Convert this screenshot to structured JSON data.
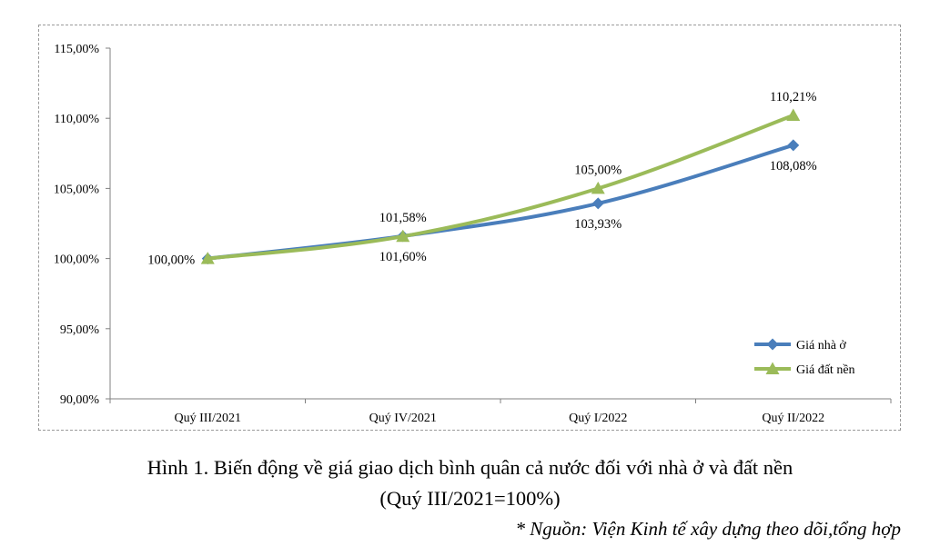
{
  "chart_data": {
    "type": "line",
    "categories": [
      "Quý III/2021",
      "Quý IV/2021",
      "Quý I/2022",
      "Quý II/2022"
    ],
    "ylim": [
      90,
      115
    ],
    "y_ticks": [
      90,
      95,
      100,
      105,
      110,
      115
    ],
    "y_tick_labels": [
      "90,00%",
      "95,00%",
      "100,00%",
      "105,00%",
      "110,00%",
      "115,00%"
    ],
    "grid": false,
    "legend_position": "bottom-right",
    "series": [
      {
        "name": "Giá nhà ở",
        "color": "#4a7ebb",
        "marker": "diamond",
        "values": [
          100.0,
          101.6,
          103.93,
          108.08
        ],
        "labels": [
          "",
          "101,60%",
          "103,93%",
          "108,08%"
        ]
      },
      {
        "name": "Giá đất nền",
        "color": "#9bbb59",
        "marker": "triangle",
        "values": [
          100.0,
          101.58,
          105.0,
          110.21
        ],
        "labels": [
          "100,00%",
          "101,58%",
          "105,00%",
          "110,21%"
        ]
      }
    ]
  },
  "caption": {
    "line1": "Hình 1. Biến động về giá giao dịch bình quân cả nước đối với nhà ở và đất nền",
    "line2": "(Quý III/2021=100%)"
  },
  "source": "* Nguồn: Viện Kinh tế xây dựng theo dõi,tổng hợp"
}
